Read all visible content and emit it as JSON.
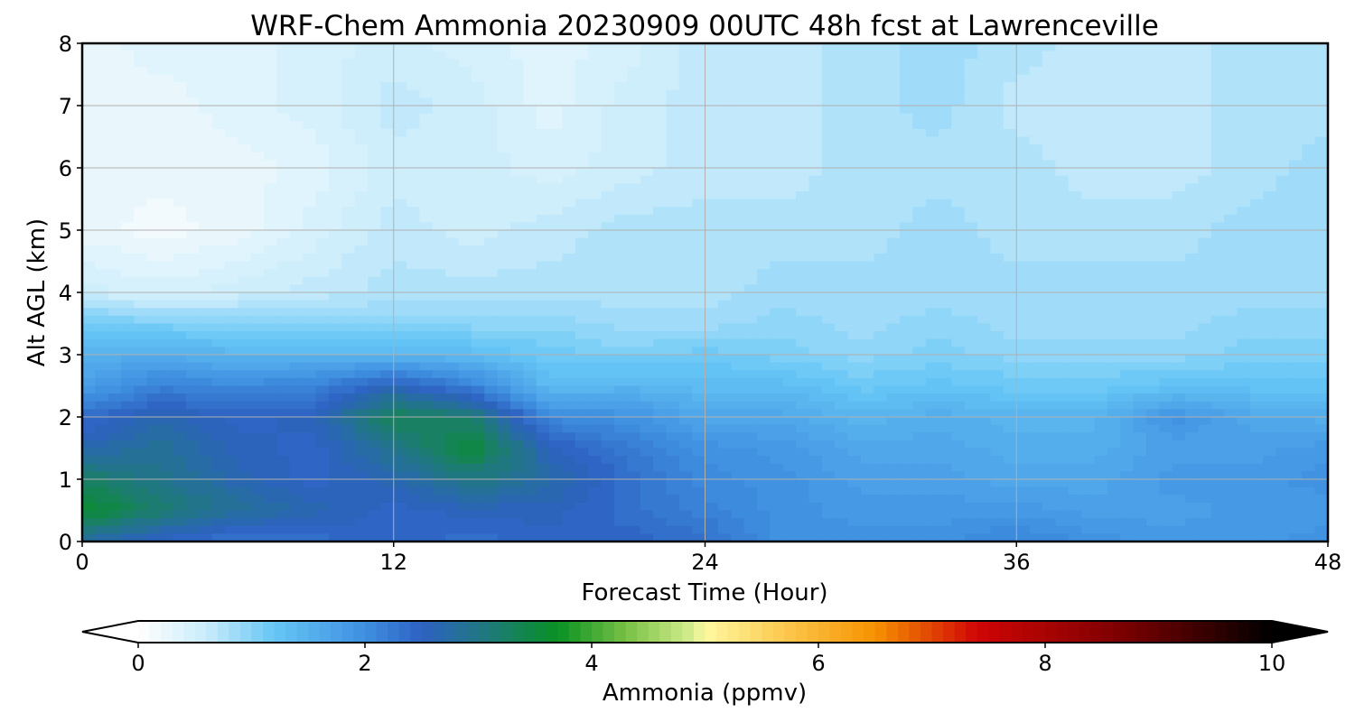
{
  "chart_data": {
    "type": "heatmap",
    "title": "WRF-Chem Ammonia  20230909 00UTC 48h fcst at Lawrenceville",
    "xlabel": "Forecast Time (Hour)",
    "ylabel": "Alt AGL (km)",
    "xlim": [
      0,
      48
    ],
    "ylim": [
      0,
      8
    ],
    "xticks": [
      "0",
      "12",
      "24",
      "36",
      "48"
    ],
    "yticks": [
      "0",
      "1",
      "2",
      "3",
      "4",
      "5",
      "6",
      "7",
      "8"
    ],
    "grid": true,
    "x_hours": [
      0,
      3,
      6,
      9,
      12,
      15,
      18,
      21,
      24,
      27,
      30,
      33,
      36,
      39,
      42,
      45,
      48
    ],
    "y_km": [
      0,
      0.5,
      1,
      1.5,
      2,
      2.5,
      3,
      3.5,
      4,
      5,
      6,
      7,
      8
    ],
    "values_ppmv": [
      [
        2.7,
        2.4,
        2.2,
        2.3,
        2.4,
        2.3,
        2.4,
        2.4,
        2.3,
        1.9,
        1.9,
        1.9,
        2.1,
        1.9,
        1.8,
        1.8,
        1.9
      ],
      [
        3.6,
        3.1,
        2.8,
        2.6,
        2.4,
        2.5,
        2.5,
        2.3,
        2.1,
        1.9,
        1.8,
        1.8,
        1.8,
        1.7,
        1.7,
        1.8,
        1.8
      ],
      [
        3.2,
        2.9,
        2.6,
        2.4,
        2.6,
        3.0,
        2.7,
        2.3,
        2.0,
        1.9,
        1.7,
        1.7,
        1.6,
        1.6,
        1.8,
        1.8,
        1.9
      ],
      [
        2.6,
        2.8,
        2.5,
        2.4,
        2.9,
        3.5,
        2.5,
        2.2,
        1.9,
        1.8,
        1.6,
        1.6,
        1.5,
        1.5,
        1.7,
        1.7,
        1.8
      ],
      [
        2.3,
        2.6,
        2.4,
        2.5,
        3.3,
        3.1,
        2.0,
        1.9,
        1.6,
        1.6,
        1.4,
        1.5,
        1.4,
        1.4,
        1.9,
        1.6,
        1.5
      ],
      [
        1.7,
        2.1,
        2.0,
        2.1,
        2.5,
        2.1,
        1.3,
        1.4,
        1.3,
        1.3,
        1.1,
        1.2,
        1.1,
        1.1,
        1.2,
        1.2,
        1.2
      ],
      [
        1.5,
        1.5,
        1.4,
        1.4,
        1.4,
        1.3,
        1.1,
        1.0,
        1.1,
        1.0,
        0.9,
        1.0,
        0.9,
        0.9,
        0.9,
        1.0,
        1.0
      ],
      [
        1.1,
        1.0,
        0.9,
        0.9,
        0.9,
        0.9,
        0.9,
        0.8,
        0.8,
        0.9,
        0.8,
        0.9,
        0.8,
        0.8,
        0.8,
        0.9,
        0.9
      ],
      [
        0.5,
        0.4,
        0.5,
        0.6,
        0.7,
        0.7,
        0.7,
        0.7,
        0.7,
        0.8,
        0.8,
        0.8,
        0.8,
        0.8,
        0.8,
        0.8,
        0.8
      ],
      [
        0.2,
        0.1,
        0.2,
        0.4,
        0.6,
        0.5,
        0.6,
        0.7,
        0.7,
        0.7,
        0.7,
        0.8,
        0.7,
        0.7,
        0.7,
        0.8,
        0.8
      ],
      [
        0.2,
        0.2,
        0.2,
        0.3,
        0.5,
        0.5,
        0.4,
        0.5,
        0.6,
        0.6,
        0.7,
        0.7,
        0.7,
        0.6,
        0.6,
        0.7,
        0.8
      ],
      [
        0.2,
        0.2,
        0.3,
        0.4,
        0.6,
        0.5,
        0.3,
        0.5,
        0.6,
        0.6,
        0.7,
        0.8,
        0.6,
        0.6,
        0.6,
        0.7,
        0.7
      ],
      [
        0.2,
        0.3,
        0.3,
        0.4,
        0.5,
        0.4,
        0.3,
        0.4,
        0.6,
        0.6,
        0.7,
        0.8,
        0.7,
        0.6,
        0.6,
        0.7,
        0.7
      ]
    ],
    "colorbar": {
      "label": "Ammonia  (ppmv)",
      "min": 0,
      "max": 10,
      "ticks": [
        "0",
        "2",
        "4",
        "6",
        "8",
        "10"
      ],
      "extend": "both",
      "stops": [
        {
          "v": 0.0,
          "c": "#ffffff"
        },
        {
          "v": 0.6,
          "c": "#c9ecfb"
        },
        {
          "v": 1.2,
          "c": "#66c6f6"
        },
        {
          "v": 2.0,
          "c": "#3f8fe0"
        },
        {
          "v": 2.5,
          "c": "#2d62c2"
        },
        {
          "v": 3.1,
          "c": "#1e7a79"
        },
        {
          "v": 3.7,
          "c": "#089123"
        },
        {
          "v": 4.3,
          "c": "#77c045"
        },
        {
          "v": 4.9,
          "c": "#d7ee90"
        },
        {
          "v": 5.0,
          "c": "#fff9a2"
        },
        {
          "v": 5.7,
          "c": "#fcc84e"
        },
        {
          "v": 6.5,
          "c": "#f69200"
        },
        {
          "v": 7.4,
          "c": "#d00505"
        },
        {
          "v": 8.7,
          "c": "#7a0000"
        },
        {
          "v": 10.0,
          "c": "#000000"
        }
      ],
      "under_color": "#ffffff",
      "over_color": "#000000"
    }
  }
}
